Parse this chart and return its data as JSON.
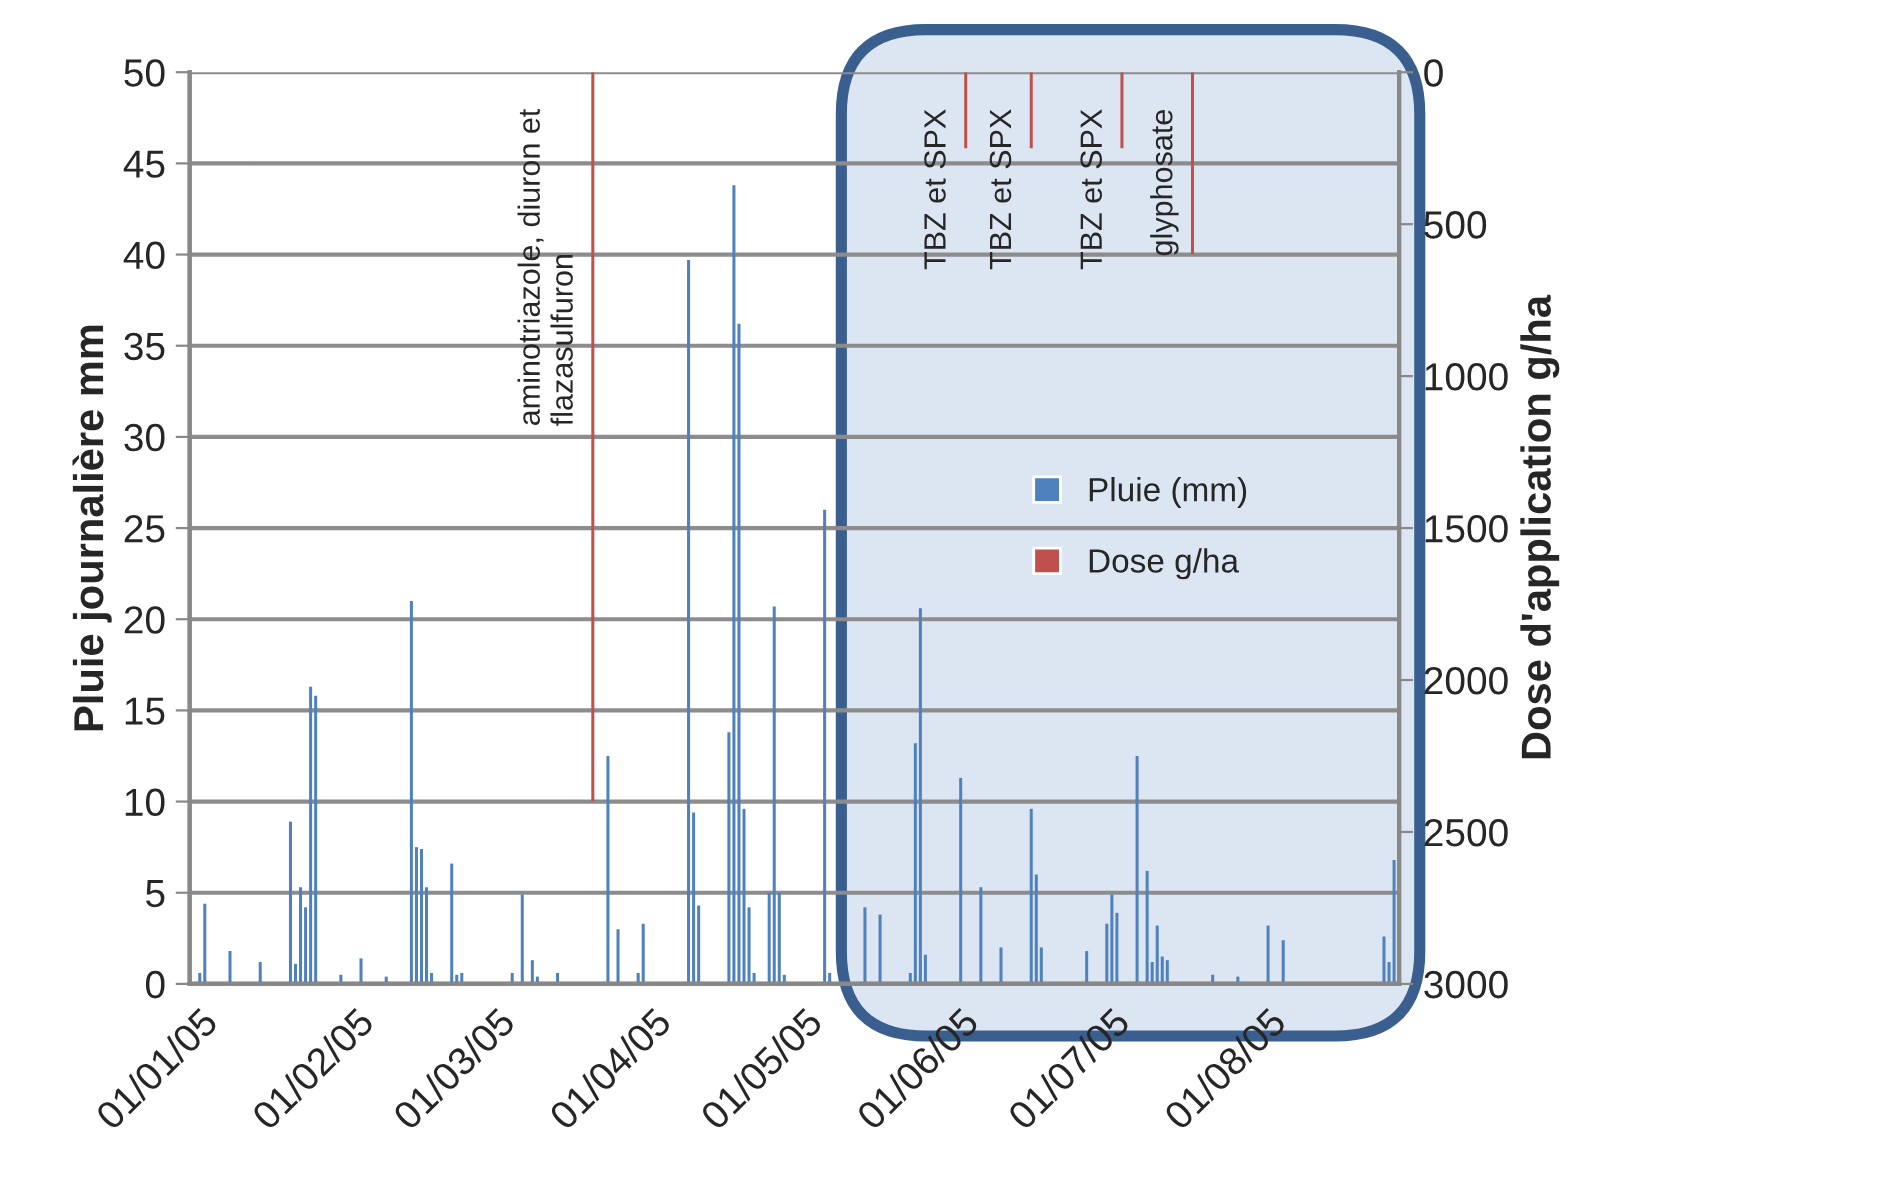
{
  "chart_data": {
    "type": "bar",
    "xlabel": null,
    "ylabel": "Pluie journalière mm",
    "y2label": "Dose d'application g/ha",
    "xlim": [
      "2004-12-30",
      "2005-08-27"
    ],
    "xticks": [
      {
        "value": "2005-01-01",
        "label": "01/01/05"
      },
      {
        "value": "2005-02-01",
        "label": "01/02/05"
      },
      {
        "value": "2005-03-01",
        "label": "01/03/05"
      },
      {
        "value": "2005-04-01",
        "label": "01/04/05"
      },
      {
        "value": "2005-05-01",
        "label": "01/05/05"
      },
      {
        "value": "2005-06-01",
        "label": "01/06/05"
      },
      {
        "value": "2005-07-01",
        "label": "01/07/05"
      },
      {
        "value": "2005-08-01",
        "label": "01/08/05"
      }
    ],
    "ylim": [
      0,
      50
    ],
    "yticks": [
      0,
      5,
      10,
      15,
      20,
      25,
      30,
      35,
      40,
      45,
      50
    ],
    "y2lim": [
      3000,
      0
    ],
    "y2ticks": [
      0,
      500,
      1000,
      1500,
      2000,
      2500,
      3000
    ],
    "grid": "y",
    "legend": "right",
    "series": [
      {
        "name": "Pluie (mm)",
        "color": "#4f81bd",
        "x": [
          "2005-01-01",
          "2005-01-02",
          "2005-01-07",
          "2005-01-13",
          "2005-01-19",
          "2005-01-20",
          "2005-01-21",
          "2005-01-22",
          "2005-01-23",
          "2005-01-24",
          "2005-01-29",
          "2005-02-02",
          "2005-02-07",
          "2005-02-12",
          "2005-02-13",
          "2005-02-14",
          "2005-02-15",
          "2005-02-16",
          "2005-02-20",
          "2005-02-21",
          "2005-02-22",
          "2005-03-04",
          "2005-03-06",
          "2005-03-08",
          "2005-03-09",
          "2005-03-13",
          "2005-03-23",
          "2005-03-25",
          "2005-03-29",
          "2005-03-30",
          "2005-04-08",
          "2005-04-09",
          "2005-04-10",
          "2005-04-16",
          "2005-04-17",
          "2005-04-18",
          "2005-04-19",
          "2005-04-20",
          "2005-04-21",
          "2005-04-24",
          "2005-04-25",
          "2005-04-26",
          "2005-04-27",
          "2005-05-05",
          "2005-05-06",
          "2005-05-13",
          "2005-05-16",
          "2005-05-22",
          "2005-05-23",
          "2005-05-24",
          "2005-05-25",
          "2005-06-01",
          "2005-06-05",
          "2005-06-09",
          "2005-06-15",
          "2005-06-16",
          "2005-06-17",
          "2005-06-26",
          "2005-06-30",
          "2005-07-01",
          "2005-07-02",
          "2005-07-06",
          "2005-07-08",
          "2005-07-09",
          "2005-07-10",
          "2005-07-11",
          "2005-07-12",
          "2005-07-21",
          "2005-07-26",
          "2005-08-01",
          "2005-08-04",
          "2005-08-24",
          "2005-08-25",
          "2005-08-26"
        ],
        "values": [
          0.6,
          4.4,
          1.8,
          1.2,
          8.9,
          1.1,
          5.3,
          4.2,
          16.3,
          15.8,
          0.5,
          1.4,
          0.4,
          21,
          7.5,
          7.4,
          5.3,
          0.6,
          6.6,
          0.5,
          0.6,
          0.6,
          4.9,
          1.3,
          0.4,
          0.6,
          12.5,
          3.0,
          0.6,
          3.3,
          39.7,
          9.4,
          4.3,
          13.8,
          43.8,
          36.2,
          9.6,
          4.2,
          0.6,
          5.0,
          20.7,
          5.0,
          0.5,
          26,
          0.6,
          4.2,
          3.8,
          0.6,
          13.2,
          20.6,
          1.6,
          11.3,
          5.3,
          2.0,
          9.6,
          6.0,
          2.0,
          1.8,
          3.3,
          4.9,
          3.9,
          12.5,
          6.2,
          1.2,
          3.2,
          1.5,
          1.3,
          0.5,
          0.4,
          3.2,
          2.4,
          2.6,
          1.2,
          6.8
        ]
      },
      {
        "name": "Dose g/ha",
        "axis": "y2",
        "color": "#c0504d",
        "x": [
          "2005-03-20",
          "2005-06-02",
          "2005-06-15",
          "2005-07-03",
          "2005-07-17"
        ],
        "values": [
          2400,
          250,
          250,
          250,
          600
        ]
      }
    ],
    "annotations": [
      {
        "text": "aminotriazole, diuron et\nflazasulfuron",
        "x": "2005-03-20",
        "y": 48
      },
      {
        "text": "TBZ et SPX",
        "x": "2005-06-02",
        "y": 48
      },
      {
        "text": "TBZ et SPX",
        "x": "2005-06-15",
        "y": 48
      },
      {
        "text": "TBZ et SPX",
        "x": "2005-07-03",
        "y": 48
      },
      {
        "text": "glyphosate",
        "x": "2005-07-17",
        "y": 48
      }
    ]
  }
}
